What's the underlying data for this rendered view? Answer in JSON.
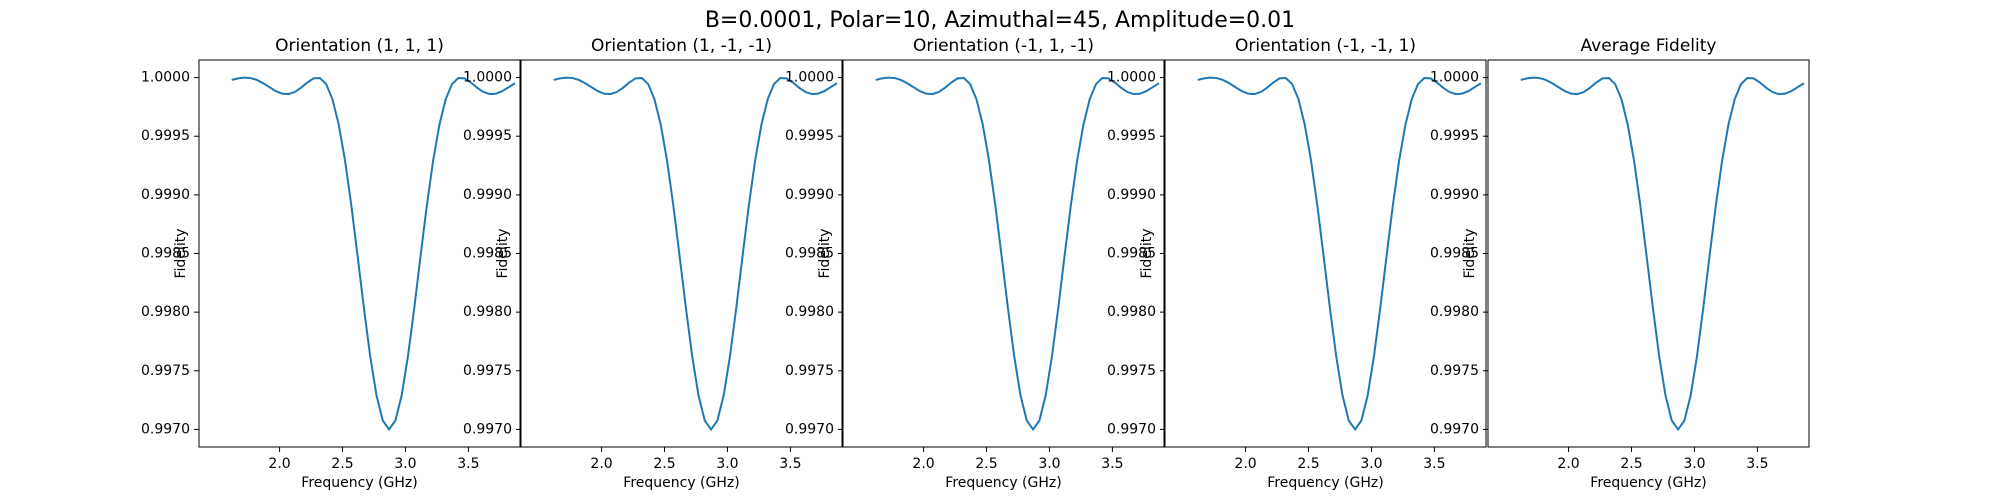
{
  "title": "B=0.0001, Polar=10, Azimuthal=45, Amplitude=0.01",
  "chart_data": [
    {
      "type": "line",
      "title": "Orientation (1, 1, 1)",
      "xlabel": "Frequency (GHz)",
      "ylabel": "Fidelity",
      "x": [
        1.62,
        1.67,
        1.72,
        1.77,
        1.82,
        1.87,
        1.92,
        1.97,
        2.02,
        2.07,
        2.12,
        2.17,
        2.22,
        2.27,
        2.32,
        2.37,
        2.42,
        2.47,
        2.52,
        2.57,
        2.62,
        2.67,
        2.72,
        2.77,
        2.82,
        2.87,
        2.92,
        2.97,
        3.02,
        3.07,
        3.12,
        3.17,
        3.22,
        3.27,
        3.32,
        3.37,
        3.42,
        3.47,
        3.52,
        3.57,
        3.62,
        3.67,
        3.72,
        3.77,
        3.82,
        3.87
      ],
      "series": [
        {
          "color": "#1f77b4",
          "values": [
            0.99998,
            0.999993,
            1.0,
            0.999996,
            0.99998,
            0.999952,
            0.999918,
            0.999885,
            0.999863,
            0.999859,
            0.999877,
            0.999913,
            0.999958,
            0.999993,
            0.999996,
            0.999945,
            0.999816,
            0.999599,
            0.999293,
            0.99891,
            0.998478,
            0.998035,
            0.997624,
            0.99729,
            0.997075,
            0.997,
            0.997075,
            0.99729,
            0.997624,
            0.998035,
            0.998478,
            0.99891,
            0.999293,
            0.999599,
            0.999816,
            0.999945,
            0.999996,
            0.999993,
            0.999958,
            0.999913,
            0.999877,
            0.999859,
            0.999863,
            0.999885,
            0.999918,
            0.999952
          ]
        }
      ],
      "xlim": [
        1.36,
        3.91
      ],
      "ylim": [
        0.99685,
        1.00015
      ],
      "xticks": [
        {
          "value": 2,
          "label": "2.0"
        },
        {
          "value": 2.5,
          "label": "2.5"
        },
        {
          "value": 3,
          "label": "3.0"
        },
        {
          "value": 3.5,
          "label": "3.5"
        }
      ],
      "yticks": [
        {
          "value": 0.997,
          "label": "0.9970"
        },
        {
          "value": 0.9975,
          "label": "0.9975"
        },
        {
          "value": 0.998,
          "label": "0.9980"
        },
        {
          "value": 0.9985,
          "label": "0.9985"
        },
        {
          "value": 0.999,
          "label": "0.9990"
        },
        {
          "value": 0.9995,
          "label": "0.9995"
        },
        {
          "value": 1,
          "label": "1.0000"
        }
      ]
    },
    {
      "type": "line",
      "title": "Orientation (1, -1, -1)",
      "xlabel": "Frequency (GHz)",
      "ylabel": "Fidelity",
      "x": [
        1.62,
        1.67,
        1.72,
        1.77,
        1.82,
        1.87,
        1.92,
        1.97,
        2.02,
        2.07,
        2.12,
        2.17,
        2.22,
        2.27,
        2.32,
        2.37,
        2.42,
        2.47,
        2.52,
        2.57,
        2.62,
        2.67,
        2.72,
        2.77,
        2.82,
        2.87,
        2.92,
        2.97,
        3.02,
        3.07,
        3.12,
        3.17,
        3.22,
        3.27,
        3.32,
        3.37,
        3.42,
        3.47,
        3.52,
        3.57,
        3.62,
        3.67,
        3.72,
        3.77,
        3.82,
        3.87
      ],
      "series": [
        {
          "color": "#1f77b4",
          "values": [
            0.99998,
            0.999993,
            1.0,
            0.999996,
            0.99998,
            0.999952,
            0.999918,
            0.999885,
            0.999863,
            0.999859,
            0.999877,
            0.999913,
            0.999958,
            0.999993,
            0.999996,
            0.999945,
            0.999816,
            0.999599,
            0.999293,
            0.99891,
            0.998478,
            0.998035,
            0.997624,
            0.99729,
            0.997075,
            0.997,
            0.997075,
            0.99729,
            0.997624,
            0.998035,
            0.998478,
            0.99891,
            0.999293,
            0.999599,
            0.999816,
            0.999945,
            0.999996,
            0.999993,
            0.999958,
            0.999913,
            0.999877,
            0.999859,
            0.999863,
            0.999885,
            0.999918,
            0.999952
          ]
        }
      ],
      "xlim": [
        1.36,
        3.91
      ],
      "ylim": [
        0.99685,
        1.00015
      ],
      "xticks": [
        {
          "value": 2,
          "label": "2.0"
        },
        {
          "value": 2.5,
          "label": "2.5"
        },
        {
          "value": 3,
          "label": "3.0"
        },
        {
          "value": 3.5,
          "label": "3.5"
        }
      ],
      "yticks": [
        {
          "value": 0.997,
          "label": "0.9970"
        },
        {
          "value": 0.9975,
          "label": "0.9975"
        },
        {
          "value": 0.998,
          "label": "0.9980"
        },
        {
          "value": 0.9985,
          "label": "0.9985"
        },
        {
          "value": 0.999,
          "label": "0.9990"
        },
        {
          "value": 0.9995,
          "label": "0.9995"
        },
        {
          "value": 1,
          "label": "1.0000"
        }
      ]
    },
    {
      "type": "line",
      "title": "Orientation (-1, 1, -1)",
      "xlabel": "Frequency (GHz)",
      "ylabel": "Fidelity",
      "x": [
        1.62,
        1.67,
        1.72,
        1.77,
        1.82,
        1.87,
        1.92,
        1.97,
        2.02,
        2.07,
        2.12,
        2.17,
        2.22,
        2.27,
        2.32,
        2.37,
        2.42,
        2.47,
        2.52,
        2.57,
        2.62,
        2.67,
        2.72,
        2.77,
        2.82,
        2.87,
        2.92,
        2.97,
        3.02,
        3.07,
        3.12,
        3.17,
        3.22,
        3.27,
        3.32,
        3.37,
        3.42,
        3.47,
        3.52,
        3.57,
        3.62,
        3.67,
        3.72,
        3.77,
        3.82,
        3.87
      ],
      "series": [
        {
          "color": "#1f77b4",
          "values": [
            0.99998,
            0.999993,
            1.0,
            0.999996,
            0.99998,
            0.999952,
            0.999918,
            0.999885,
            0.999863,
            0.999859,
            0.999877,
            0.999913,
            0.999958,
            0.999993,
            0.999996,
            0.999945,
            0.999816,
            0.999599,
            0.999293,
            0.99891,
            0.998478,
            0.998035,
            0.997624,
            0.99729,
            0.997075,
            0.997,
            0.997075,
            0.99729,
            0.997624,
            0.998035,
            0.998478,
            0.99891,
            0.999293,
            0.999599,
            0.999816,
            0.999945,
            0.999996,
            0.999993,
            0.999958,
            0.999913,
            0.999877,
            0.999859,
            0.999863,
            0.999885,
            0.999918,
            0.999952
          ]
        }
      ],
      "xlim": [
        1.36,
        3.91
      ],
      "ylim": [
        0.99685,
        1.00015
      ],
      "xticks": [
        {
          "value": 2,
          "label": "2.0"
        },
        {
          "value": 2.5,
          "label": "2.5"
        },
        {
          "value": 3,
          "label": "3.0"
        },
        {
          "value": 3.5,
          "label": "3.5"
        }
      ],
      "yticks": [
        {
          "value": 0.997,
          "label": "0.9970"
        },
        {
          "value": 0.9975,
          "label": "0.9975"
        },
        {
          "value": 0.998,
          "label": "0.9980"
        },
        {
          "value": 0.9985,
          "label": "0.9985"
        },
        {
          "value": 0.999,
          "label": "0.9990"
        },
        {
          "value": 0.9995,
          "label": "0.9995"
        },
        {
          "value": 1,
          "label": "1.0000"
        }
      ]
    },
    {
      "type": "line",
      "title": "Orientation (-1, -1, 1)",
      "xlabel": "Frequency (GHz)",
      "ylabel": "Fidelity",
      "x": [
        1.62,
        1.67,
        1.72,
        1.77,
        1.82,
        1.87,
        1.92,
        1.97,
        2.02,
        2.07,
        2.12,
        2.17,
        2.22,
        2.27,
        2.32,
        2.37,
        2.42,
        2.47,
        2.52,
        2.57,
        2.62,
        2.67,
        2.72,
        2.77,
        2.82,
        2.87,
        2.92,
        2.97,
        3.02,
        3.07,
        3.12,
        3.17,
        3.22,
        3.27,
        3.32,
        3.37,
        3.42,
        3.47,
        3.52,
        3.57,
        3.62,
        3.67,
        3.72,
        3.77,
        3.82,
        3.87
      ],
      "series": [
        {
          "color": "#1f77b4",
          "values": [
            0.99998,
            0.999993,
            1.0,
            0.999996,
            0.99998,
            0.999952,
            0.999918,
            0.999885,
            0.999863,
            0.999859,
            0.999877,
            0.999913,
            0.999958,
            0.999993,
            0.999996,
            0.999945,
            0.999816,
            0.999599,
            0.999293,
            0.99891,
            0.998478,
            0.998035,
            0.997624,
            0.99729,
            0.997075,
            0.997,
            0.997075,
            0.99729,
            0.997624,
            0.998035,
            0.998478,
            0.99891,
            0.999293,
            0.999599,
            0.999816,
            0.999945,
            0.999996,
            0.999993,
            0.999958,
            0.999913,
            0.999877,
            0.999859,
            0.999863,
            0.999885,
            0.999918,
            0.999952
          ]
        }
      ],
      "xlim": [
        1.36,
        3.91
      ],
      "ylim": [
        0.99685,
        1.00015
      ],
      "xticks": [
        {
          "value": 2,
          "label": "2.0"
        },
        {
          "value": 2.5,
          "label": "2.5"
        },
        {
          "value": 3,
          "label": "3.0"
        },
        {
          "value": 3.5,
          "label": "3.5"
        }
      ],
      "yticks": [
        {
          "value": 0.997,
          "label": "0.9970"
        },
        {
          "value": 0.9975,
          "label": "0.9975"
        },
        {
          "value": 0.998,
          "label": "0.9980"
        },
        {
          "value": 0.9985,
          "label": "0.9985"
        },
        {
          "value": 0.999,
          "label": "0.9990"
        },
        {
          "value": 0.9995,
          "label": "0.9995"
        },
        {
          "value": 1,
          "label": "1.0000"
        }
      ]
    },
    {
      "type": "line",
      "title": "Average Fidelity",
      "xlabel": "Frequency (GHz)",
      "ylabel": "Fidelity",
      "x": [
        1.62,
        1.67,
        1.72,
        1.77,
        1.82,
        1.87,
        1.92,
        1.97,
        2.02,
        2.07,
        2.12,
        2.17,
        2.22,
        2.27,
        2.32,
        2.37,
        2.42,
        2.47,
        2.52,
        2.57,
        2.62,
        2.67,
        2.72,
        2.77,
        2.82,
        2.87,
        2.92,
        2.97,
        3.02,
        3.07,
        3.12,
        3.17,
        3.22,
        3.27,
        3.32,
        3.37,
        3.42,
        3.47,
        3.52,
        3.57,
        3.62,
        3.67,
        3.72,
        3.77,
        3.82,
        3.87
      ],
      "series": [
        {
          "color": "#1f77b4",
          "values": [
            0.99998,
            0.999993,
            1.0,
            0.999996,
            0.99998,
            0.999952,
            0.999918,
            0.999885,
            0.999863,
            0.999859,
            0.999877,
            0.999913,
            0.999958,
            0.999993,
            0.999996,
            0.999945,
            0.999816,
            0.999599,
            0.999293,
            0.99891,
            0.998478,
            0.998035,
            0.997624,
            0.99729,
            0.997075,
            0.997,
            0.997075,
            0.99729,
            0.997624,
            0.998035,
            0.998478,
            0.99891,
            0.999293,
            0.999599,
            0.999816,
            0.999945,
            0.999996,
            0.999993,
            0.999958,
            0.999913,
            0.999877,
            0.999859,
            0.999863,
            0.999885,
            0.999918,
            0.999952
          ]
        }
      ],
      "xlim": [
        1.36,
        3.91
      ],
      "ylim": [
        0.99685,
        1.00015
      ],
      "xticks": [
        {
          "value": 2,
          "label": "2.0"
        },
        {
          "value": 2.5,
          "label": "2.5"
        },
        {
          "value": 3,
          "label": "3.0"
        },
        {
          "value": 3.5,
          "label": "3.5"
        }
      ],
      "yticks": [
        {
          "value": 0.997,
          "label": "0.9970"
        },
        {
          "value": 0.9975,
          "label": "0.9975"
        },
        {
          "value": 0.998,
          "label": "0.9980"
        },
        {
          "value": 0.9985,
          "label": "0.9985"
        },
        {
          "value": 0.999,
          "label": "0.9990"
        },
        {
          "value": 0.9995,
          "label": "0.9995"
        },
        {
          "value": 1,
          "label": "1.0000"
        }
      ]
    }
  ]
}
